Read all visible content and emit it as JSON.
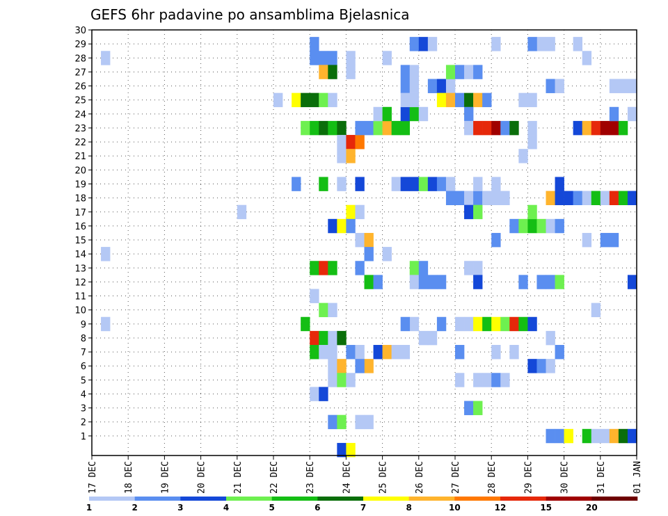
{
  "chart_data": {
    "type": "heatmap",
    "title": "GEFS 6hr padavine po ansamblima Bjelasnica",
    "xlabel": "",
    "ylabel": "",
    "x_ticks": [
      "17 DEC",
      "18 DEC",
      "19 DEC",
      "20 DEC",
      "21 DEC",
      "22 DEC",
      "23 DEC",
      "24 DEC",
      "25 DEC",
      "26 DEC",
      "27 DEC",
      "28 DEC",
      "29 DEC",
      "30 DEC",
      "31 DEC",
      "01 JAN"
    ],
    "x_range_days": [
      0,
      15
    ],
    "y_range": [
      0,
      30
    ],
    "y_ticks": [
      1,
      2,
      3,
      4,
      5,
      6,
      7,
      8,
      9,
      10,
      11,
      12,
      13,
      14,
      15,
      16,
      17,
      18,
      19,
      20,
      21,
      22,
      23,
      24,
      25,
      26,
      27,
      28,
      29,
      30
    ],
    "grid": true,
    "legend": {
      "placement": "bottom",
      "labels": [
        "1",
        "2",
        "3",
        "4",
        "5",
        "6",
        "7",
        "8",
        "10",
        "12",
        "15",
        "20"
      ],
      "colors": [
        "#b4c8f5",
        "#5a8ef0",
        "#1448d8",
        "#6ef050",
        "#14be14",
        "#0a6e0a",
        "#ffff00",
        "#ffb42d",
        "#ff7800",
        "#e6280a",
        "#a00000",
        "#6e0000"
      ]
    },
    "cell_days": 0.25,
    "cells": [
      [
        0.25,
        1,
        28
      ],
      [
        0.25,
        1,
        14
      ],
      [
        0.25,
        1,
        9
      ],
      [
        4.0,
        1,
        17
      ],
      [
        5.0,
        1,
        25
      ],
      [
        5.5,
        7,
        25
      ],
      [
        5.75,
        6,
        25
      ],
      [
        6.0,
        6,
        25
      ],
      [
        6.25,
        4,
        25
      ],
      [
        6.5,
        1,
        25
      ],
      [
        5.5,
        2,
        19
      ],
      [
        5.75,
        4,
        23
      ],
      [
        6.0,
        5,
        23
      ],
      [
        6.25,
        6,
        23
      ],
      [
        6.5,
        5,
        23
      ],
      [
        6.75,
        6,
        23
      ],
      [
        6.0,
        2,
        29
      ],
      [
        6.0,
        2,
        28
      ],
      [
        6.25,
        2,
        28
      ],
      [
        6.5,
        2,
        28
      ],
      [
        6.25,
        8,
        27
      ],
      [
        6.5,
        6,
        27
      ],
      [
        6.25,
        5,
        19
      ],
      [
        6.0,
        1,
        11
      ],
      [
        6.25,
        4,
        10
      ],
      [
        6.5,
        1,
        10
      ],
      [
        5.75,
        5,
        9
      ],
      [
        6.0,
        12,
        8
      ],
      [
        6.25,
        5,
        8
      ],
      [
        6.5,
        1,
        8
      ],
      [
        6.75,
        6,
        8
      ],
      [
        6.0,
        5,
        7
      ],
      [
        6.25,
        1,
        7
      ],
      [
        6.5,
        1,
        7
      ],
      [
        6.0,
        5,
        13
      ],
      [
        6.25,
        12,
        13
      ],
      [
        6.5,
        5,
        13
      ],
      [
        6.5,
        1,
        6
      ],
      [
        6.75,
        8,
        6
      ],
      [
        6.5,
        1,
        5
      ],
      [
        6.75,
        4,
        5
      ],
      [
        7.0,
        1,
        5
      ],
      [
        6.0,
        1,
        4
      ],
      [
        6.25,
        3,
        4
      ],
      [
        6.5,
        2,
        2
      ],
      [
        6.75,
        4,
        2
      ],
      [
        7.25,
        1,
        2
      ],
      [
        7.5,
        1,
        2
      ],
      [
        6.5,
        3,
        16
      ],
      [
        6.75,
        7,
        16
      ],
      [
        6.75,
        1,
        19
      ],
      [
        7.25,
        3,
        19
      ],
      [
        6.75,
        1,
        22
      ],
      [
        7.0,
        12,
        22
      ],
      [
        7.25,
        10,
        22
      ],
      [
        6.75,
        1,
        21
      ],
      [
        7.0,
        8,
        21
      ],
      [
        7.0,
        7,
        17
      ],
      [
        7.25,
        1,
        17
      ],
      [
        7.0,
        1,
        28
      ],
      [
        7.0,
        1,
        27
      ],
      [
        6.75,
        3,
        0
      ],
      [
        7.0,
        7,
        0
      ],
      [
        7.25,
        2,
        23
      ],
      [
        7.5,
        2,
        23
      ],
      [
        7.75,
        4,
        23
      ],
      [
        8.0,
        8,
        23
      ],
      [
        8.25,
        5,
        23
      ],
      [
        8.5,
        5,
        23
      ],
      [
        7.75,
        1,
        24
      ],
      [
        8.0,
        5,
        24
      ],
      [
        8.5,
        3,
        24
      ],
      [
        8.75,
        5,
        24
      ],
      [
        9.0,
        1,
        24
      ],
      [
        7.25,
        1,
        15
      ],
      [
        7.5,
        8,
        15
      ],
      [
        7.0,
        2,
        16
      ],
      [
        7.5,
        2,
        14
      ],
      [
        8.0,
        1,
        14
      ],
      [
        7.25,
        2,
        13
      ],
      [
        7.5,
        5,
        12
      ],
      [
        7.75,
        2,
        12
      ],
      [
        7.0,
        2,
        7
      ],
      [
        7.25,
        1,
        7
      ],
      [
        7.75,
        3,
        7
      ],
      [
        8.0,
        8,
        7
      ],
      [
        8.25,
        1,
        7
      ],
      [
        8.5,
        1,
        7
      ],
      [
        7.5,
        8,
        6
      ],
      [
        7.25,
        2,
        6
      ],
      [
        8.0,
        1,
        28
      ],
      [
        8.25,
        1,
        19
      ],
      [
        8.5,
        3,
        19
      ],
      [
        8.75,
        3,
        19
      ],
      [
        9.0,
        4,
        19
      ],
      [
        9.25,
        3,
        19
      ],
      [
        9.5,
        2,
        19
      ],
      [
        9.75,
        1,
        19
      ],
      [
        8.5,
        2,
        27
      ],
      [
        8.75,
        1,
        27
      ],
      [
        8.5,
        2,
        26
      ],
      [
        8.75,
        1,
        26
      ],
      [
        8.5,
        1,
        25
      ],
      [
        8.75,
        1,
        25
      ],
      [
        8.75,
        2,
        29
      ],
      [
        9.0,
        3,
        29
      ],
      [
        9.25,
        1,
        29
      ],
      [
        9.25,
        2,
        26
      ],
      [
        9.5,
        3,
        26
      ],
      [
        9.75,
        1,
        26
      ],
      [
        9.5,
        7,
        25
      ],
      [
        9.75,
        8,
        25
      ],
      [
        10.0,
        2,
        25
      ],
      [
        10.25,
        6,
        25
      ],
      [
        10.5,
        8,
        25
      ],
      [
        10.75,
        2,
        25
      ],
      [
        9.75,
        4,
        27
      ],
      [
        10.0,
        2,
        27
      ],
      [
        10.25,
        1,
        27
      ],
      [
        10.5,
        2,
        27
      ],
      [
        10.25,
        2,
        24
      ],
      [
        10.25,
        1,
        23
      ],
      [
        10.5,
        12,
        23
      ],
      [
        10.75,
        12,
        23
      ],
      [
        11.0,
        15,
        23
      ],
      [
        11.25,
        2,
        23
      ],
      [
        11.5,
        6,
        23
      ],
      [
        8.75,
        1,
        9
      ],
      [
        8.5,
        2,
        9
      ],
      [
        9.5,
        2,
        9
      ],
      [
        10.25,
        1,
        9
      ],
      [
        10.5,
        7,
        9
      ],
      [
        10.75,
        5,
        9
      ],
      [
        11.0,
        7,
        9
      ],
      [
        11.25,
        4,
        9
      ],
      [
        11.5,
        12,
        9
      ],
      [
        11.75,
        5,
        9
      ],
      [
        12.0,
        3,
        9
      ],
      [
        10.0,
        1,
        9
      ],
      [
        9.0,
        1,
        8
      ],
      [
        9.25,
        1,
        8
      ],
      [
        8.75,
        4,
        13
      ],
      [
        9.0,
        2,
        13
      ],
      [
        8.75,
        1,
        12
      ],
      [
        9.0,
        2,
        12
      ],
      [
        9.25,
        2,
        12
      ],
      [
        9.5,
        2,
        12
      ],
      [
        9.75,
        2,
        18
      ],
      [
        10.0,
        2,
        18
      ],
      [
        10.25,
        1,
        18
      ],
      [
        10.5,
        2,
        18
      ],
      [
        10.75,
        1,
        18
      ],
      [
        11.0,
        1,
        18
      ],
      [
        11.25,
        1,
        18
      ],
      [
        10.25,
        3,
        17
      ],
      [
        10.5,
        4,
        17
      ],
      [
        10.25,
        1,
        13
      ],
      [
        10.5,
        1,
        13
      ],
      [
        10.5,
        3,
        12
      ],
      [
        10.5,
        1,
        19
      ],
      [
        11.0,
        1,
        19
      ],
      [
        11.0,
        1,
        29
      ],
      [
        10.0,
        1,
        5
      ],
      [
        10.5,
        1,
        5
      ],
      [
        10.75,
        1,
        5
      ],
      [
        11.0,
        2,
        5
      ],
      [
        11.25,
        1,
        5
      ],
      [
        10.0,
        2,
        7
      ],
      [
        11.0,
        1,
        7
      ],
      [
        11.5,
        1,
        7
      ],
      [
        12.75,
        2,
        7
      ],
      [
        10.25,
        2,
        3
      ],
      [
        10.5,
        4,
        3
      ],
      [
        11.0,
        2,
        15
      ],
      [
        11.5,
        2,
        16
      ],
      [
        11.75,
        4,
        16
      ],
      [
        12.0,
        5,
        16
      ],
      [
        12.25,
        4,
        16
      ],
      [
        12.5,
        1,
        16
      ],
      [
        12.75,
        2,
        16
      ],
      [
        12.0,
        4,
        17
      ],
      [
        11.75,
        1,
        25
      ],
      [
        12.0,
        1,
        25
      ],
      [
        11.75,
        1,
        21
      ],
      [
        12.0,
        1,
        22
      ],
      [
        12.0,
        1,
        23
      ],
      [
        12.25,
        1,
        29
      ],
      [
        12.5,
        1,
        29
      ],
      [
        12.0,
        2,
        29
      ],
      [
        11.75,
        2,
        12
      ],
      [
        12.25,
        2,
        12
      ],
      [
        12.5,
        2,
        12
      ],
      [
        12.75,
        4,
        12
      ],
      [
        12.0,
        3,
        6
      ],
      [
        12.25,
        2,
        6
      ],
      [
        12.5,
        1,
        6
      ],
      [
        12.5,
        1,
        8
      ],
      [
        12.5,
        8,
        18
      ],
      [
        12.75,
        3,
        18
      ],
      [
        12.75,
        3,
        19
      ],
      [
        12.5,
        2,
        26
      ],
      [
        12.75,
        1,
        26
      ],
      [
        12.5,
        2,
        1
      ],
      [
        12.75,
        2,
        1
      ],
      [
        13.0,
        7,
        1
      ],
      [
        13.5,
        5,
        1
      ],
      [
        13.75,
        1,
        1
      ],
      [
        14.0,
        1,
        1
      ],
      [
        14.25,
        8,
        1
      ],
      [
        14.5,
        6,
        1
      ],
      [
        14.75,
        3,
        1
      ],
      [
        13.0,
        3,
        18
      ],
      [
        13.25,
        2,
        18
      ],
      [
        13.5,
        1,
        18
      ],
      [
        13.75,
        5,
        18
      ],
      [
        14.0,
        1,
        18
      ],
      [
        14.25,
        12,
        18
      ],
      [
        14.5,
        5,
        18
      ],
      [
        14.75,
        3,
        18
      ],
      [
        13.25,
        3,
        23
      ],
      [
        13.5,
        8,
        23
      ],
      [
        13.75,
        12,
        23
      ],
      [
        14.0,
        15,
        23
      ],
      [
        14.25,
        15,
        23
      ],
      [
        14.5,
        5,
        23
      ],
      [
        13.5,
        1,
        28
      ],
      [
        13.25,
        1,
        29
      ],
      [
        13.75,
        1,
        10
      ],
      [
        13.5,
        1,
        15
      ],
      [
        14.0,
        2,
        15
      ],
      [
        14.25,
        2,
        15
      ],
      [
        14.25,
        1,
        26
      ],
      [
        14.5,
        1,
        26
      ],
      [
        14.75,
        1,
        26
      ],
      [
        14.25,
        2,
        24
      ],
      [
        14.75,
        1,
        24
      ],
      [
        14.75,
        3,
        12
      ]
    ]
  }
}
